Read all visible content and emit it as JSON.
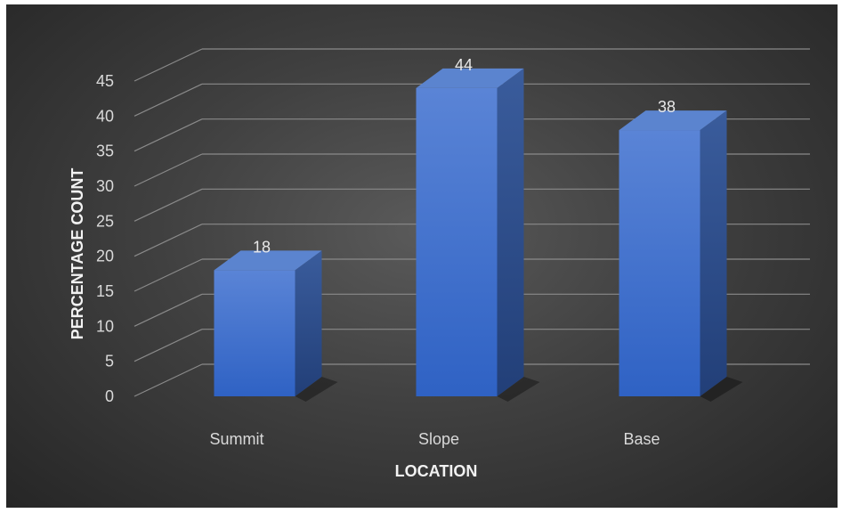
{
  "chart_data": {
    "type": "bar",
    "style": "3d-column",
    "categories": [
      "Summit",
      "Slope",
      "Base"
    ],
    "values": [
      18,
      44,
      38
    ],
    "title": "",
    "xlabel": "LOCATION",
    "ylabel": "PERCENTAGE COUNT",
    "ylim": [
      0,
      45
    ],
    "yticks": [
      "0",
      "5",
      "10",
      "15",
      "20",
      "25",
      "30",
      "35",
      "40",
      "45"
    ],
    "data_labels": [
      "18",
      "44",
      "38"
    ],
    "grid": true,
    "legend": "none",
    "colors": {
      "bar_front": "#4472c4",
      "bar_side": "#2f4f8f",
      "bar_top": "#5b84cf",
      "background": "#404040",
      "gridline": "#8a8a8a",
      "text": "#d9d9d9"
    }
  }
}
